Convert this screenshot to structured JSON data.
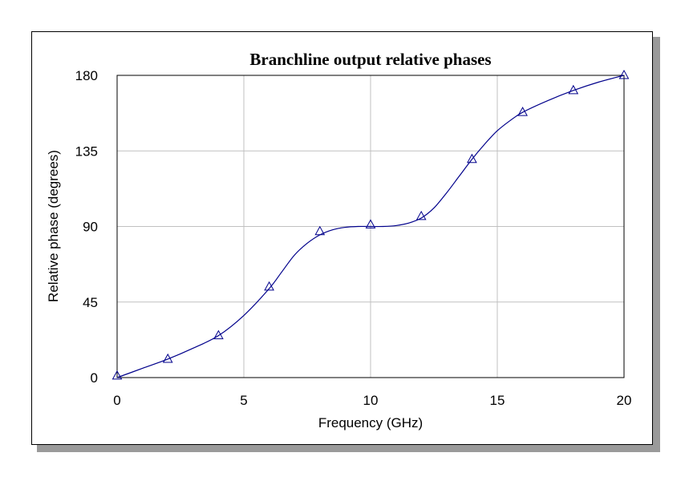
{
  "chart_data": {
    "type": "line",
    "title": "Branchline output relative phases",
    "xlabel": "Frequency (GHz)",
    "ylabel": "Relative phase (degrees)",
    "xlim": [
      0,
      20
    ],
    "ylim": [
      0,
      180
    ],
    "xticks": [
      0,
      5,
      10,
      15,
      20
    ],
    "yticks": [
      0,
      45,
      90,
      135,
      180
    ],
    "grid": true,
    "legend": "none",
    "line_color": "#00008b",
    "marker": "triangle",
    "series": [
      {
        "x": [
          0,
          2,
          4,
          6,
          8,
          10,
          12,
          14,
          16,
          18,
          20
        ],
        "values": [
          1,
          11,
          25,
          54,
          87,
          91,
          96,
          130,
          158,
          171,
          180
        ]
      }
    ],
    "curve": {
      "x": [
        0,
        1,
        2,
        3,
        4,
        5,
        6,
        6.5,
        7,
        7.5,
        8,
        8.5,
        9,
        9.5,
        10,
        10.5,
        11,
        11.5,
        12,
        12.5,
        13,
        13.5,
        14,
        14.5,
        15,
        15.5,
        16,
        17,
        18,
        19,
        20
      ],
      "values": [
        0,
        5.5,
        11,
        17.5,
        25,
        37,
        53,
        63,
        73,
        80,
        85,
        88,
        89.5,
        90,
        90,
        90,
        90.5,
        92,
        95,
        101,
        110,
        120,
        130,
        139,
        147,
        153,
        158,
        165,
        171,
        176,
        180
      ]
    }
  }
}
